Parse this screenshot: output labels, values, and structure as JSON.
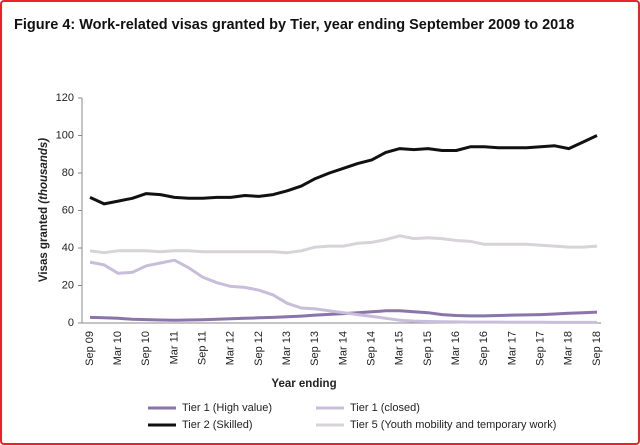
{
  "chart_data": {
    "type": "line",
    "title": "Figure 4: Work-related visas granted by Tier, year ending September 2009 to 2018",
    "ylabel": "Visas granted",
    "ylabel_note": "(thousands)",
    "xlabel": "Year ending",
    "categories": [
      "Sep 09",
      null,
      "Mar 10",
      null,
      "Sep 10",
      null,
      "Mar 11",
      null,
      "Sep 11",
      null,
      "Mar 12",
      null,
      "Sep 12",
      null,
      "Mar 13",
      null,
      "Sep 13",
      null,
      "Mar 14",
      null,
      "Sep 14",
      null,
      "Mar 15",
      null,
      "Sep 15",
      null,
      "Mar 16",
      null,
      "Sep 16",
      null,
      "Mar 17",
      null,
      "Sep 17",
      null,
      "Mar 18",
      null,
      "Sep 18"
    ],
    "ylim": [
      0,
      120
    ],
    "yticks": [
      0,
      20,
      40,
      60,
      80,
      100,
      120
    ],
    "grid": false,
    "series": [
      {
        "name": "Tier 1 (High value)",
        "color": "#8a74a9",
        "values": [
          3,
          2.8,
          2.5,
          2,
          1.8,
          1.6,
          1.5,
          1.6,
          1.7,
          2,
          2.3,
          2.5,
          2.8,
          3,
          3.3,
          3.7,
          4.2,
          4.6,
          5,
          5.5,
          6,
          6.5,
          6.5,
          6,
          5.5,
          4.5,
          4,
          3.8,
          3.8,
          4,
          4.2,
          4.3,
          4.5,
          4.8,
          5.2,
          5.5,
          5.8
        ]
      },
      {
        "name": "Tier 1 (closed)",
        "color": "#c8bedb",
        "values": [
          32.5,
          31,
          26.5,
          27,
          30.5,
          32,
          33.5,
          29.5,
          24.5,
          21.5,
          19.5,
          19,
          17.5,
          15,
          10.5,
          8,
          7.5,
          6.5,
          5.5,
          4.5,
          3.5,
          2.5,
          1.5,
          1,
          0.8,
          0.7,
          0.6,
          0.5,
          0.5,
          0.5,
          0.4,
          0.4,
          0.4,
          0.3,
          0.3,
          0.3,
          0.3
        ]
      },
      {
        "name": "Tier 2 (Skilled)",
        "color": "#111111",
        "values": [
          67,
          63.5,
          65,
          66.5,
          69,
          68.5,
          67,
          66.5,
          66.5,
          67,
          67,
          68,
          67.5,
          68.5,
          70.5,
          73,
          77,
          80,
          82.5,
          85,
          87,
          91,
          93,
          92.5,
          93,
          92,
          92,
          94,
          94,
          93.5,
          93.5,
          93.5,
          94,
          94.5,
          93,
          96.5,
          100
        ]
      },
      {
        "name": "Tier 5 (Youth mobility and temporary work)",
        "color": "#d7d3d8",
        "values": [
          38.5,
          37.5,
          38.5,
          38.5,
          38.5,
          38,
          38.5,
          38.5,
          38,
          38,
          38,
          38,
          38,
          38,
          37.5,
          38.5,
          40.5,
          41,
          41,
          42.5,
          43,
          44.5,
          46.5,
          45,
          45.5,
          45,
          44,
          43.5,
          42,
          42,
          42,
          42,
          41.5,
          41,
          40.5,
          40.5,
          41
        ]
      }
    ]
  }
}
